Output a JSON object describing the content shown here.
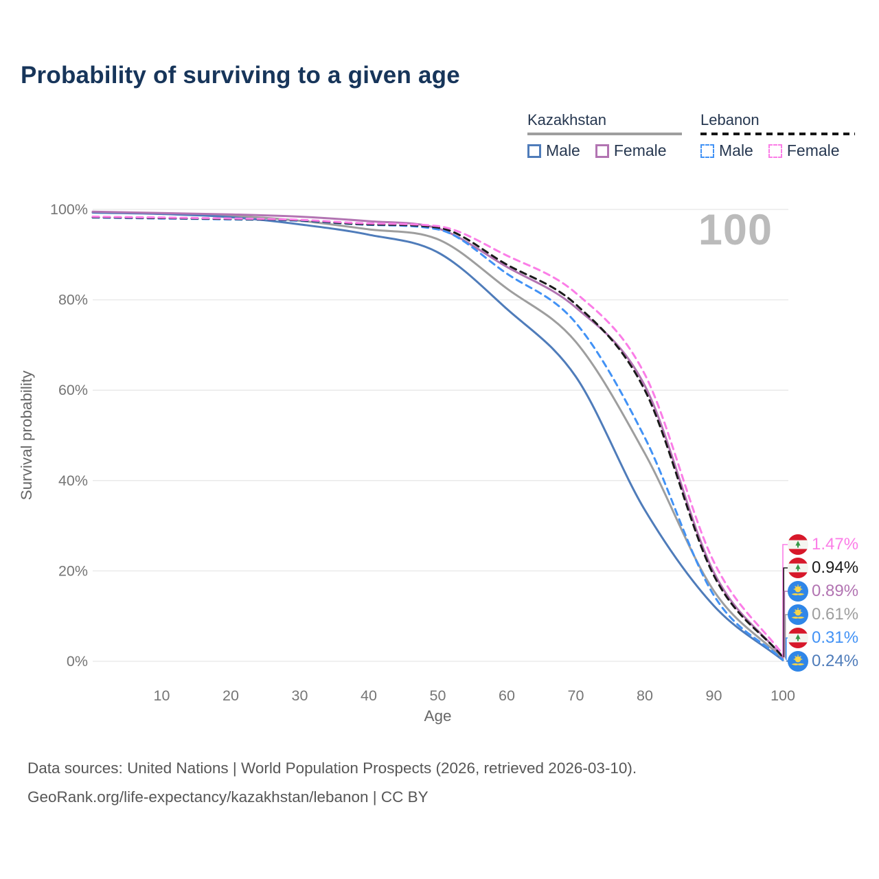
{
  "header": {
    "title": "Probability of surviving to a given age"
  },
  "watermark": {
    "age_indicator": "100"
  },
  "legend": {
    "groups": [
      {
        "country": "Kazakhstan",
        "line_style": "solid",
        "underline_color": "#9e9e9e",
        "items": [
          {
            "label": "Male",
            "color": "#4f7cba"
          },
          {
            "label": "Female",
            "color": "#b274b2"
          }
        ]
      },
      {
        "country": "Lebanon",
        "line_style": "dashed",
        "underline_color": "#151515",
        "items": [
          {
            "label": "Male",
            "color": "#4292f5"
          },
          {
            "label": "Female",
            "color": "#fb7de7"
          }
        ]
      }
    ]
  },
  "chart_data": {
    "type": "line",
    "title": "Probability of surviving to a given age",
    "xlabel": "Age",
    "ylabel": "Survival probability",
    "xlim": [
      0,
      100
    ],
    "ylim": [
      0,
      100
    ],
    "grid": "horizontal",
    "legend_position": "top-right",
    "x_ticks": [
      {
        "v": 10,
        "label": "10"
      },
      {
        "v": 20,
        "label": "20"
      },
      {
        "v": 30,
        "label": "30"
      },
      {
        "v": 40,
        "label": "40"
      },
      {
        "v": 50,
        "label": "50"
      },
      {
        "v": 60,
        "label": "60"
      },
      {
        "v": 70,
        "label": "70"
      },
      {
        "v": 80,
        "label": "80"
      },
      {
        "v": 90,
        "label": "90"
      },
      {
        "v": 100,
        "label": "100"
      }
    ],
    "y_ticks": [
      {
        "v": 0,
        "label": "0%"
      },
      {
        "v": 20,
        "label": "20%"
      },
      {
        "v": 40,
        "label": "40%"
      },
      {
        "v": 60,
        "label": "60%"
      },
      {
        "v": 80,
        "label": "80%"
      },
      {
        "v": 100,
        "label": "100%"
      }
    ],
    "x": [
      0,
      10,
      20,
      30,
      40,
      50,
      60,
      70,
      80,
      90,
      100
    ],
    "series": [
      {
        "name": "Kazakhstan (both sexes)",
        "country": "Kazakhstan",
        "sex": "Both",
        "color": "#9e9e9e",
        "dash": false,
        "end_label": "0.61%",
        "values": [
          99.4,
          99.1,
          98.6,
          97.5,
          95.6,
          93.4,
          82.5,
          70.7,
          46.0,
          15.6,
          0.61
        ]
      },
      {
        "name": "Kazakhstan Male",
        "country": "Kazakhstan",
        "sex": "Male",
        "color": "#4f7cba",
        "dash": false,
        "end_label": "0.24%",
        "values": [
          99.3,
          99.0,
          98.3,
          96.7,
          94.4,
          90.5,
          78.0,
          63.0,
          33.5,
          12.3,
          0.24
        ]
      },
      {
        "name": "Kazakhstan Female",
        "country": "Kazakhstan",
        "sex": "Female",
        "color": "#b274b2",
        "dash": false,
        "end_label": "0.89%",
        "values": [
          99.5,
          99.2,
          98.9,
          98.4,
          97.4,
          95.8,
          87.3,
          78.3,
          61.0,
          19.7,
          0.89
        ]
      },
      {
        "name": "Lebanon Male",
        "country": "Lebanon",
        "sex": "Male",
        "color": "#4292f5",
        "dash": true,
        "end_label": "0.31%",
        "values": [
          98.2,
          98.0,
          97.8,
          97.5,
          96.6,
          95.6,
          85.8,
          74.9,
          49.5,
          14.6,
          0.31
        ]
      },
      {
        "name": "Lebanon (both sexes)",
        "country": "Lebanon",
        "sex": "Both",
        "color": "#1a1a1a",
        "dash": true,
        "end_label": "0.94%",
        "values": [
          98.3,
          98.1,
          97.9,
          97.6,
          96.7,
          96.0,
          87.8,
          79.0,
          60.0,
          19.0,
          0.94
        ]
      },
      {
        "name": "Lebanon Female",
        "country": "Lebanon",
        "sex": "Female",
        "color": "#fb7de7",
        "dash": true,
        "end_label": "1.47%",
        "values": [
          98.4,
          98.2,
          98.0,
          97.7,
          96.9,
          96.3,
          89.8,
          81.5,
          63.5,
          22.0,
          1.47
        ]
      }
    ],
    "flag_colors": {
      "lebanon_red": "#d7182a",
      "lebanon_white": "#f4f5f0",
      "lebanon_green": "#359846",
      "kazakhstan_blue": "#2f86e8",
      "kazakhstan_yellow": "#f6d44c"
    }
  },
  "footer": {
    "line1": "Data sources: United Nations | World Population Prospects (2026, retrieved 2026-03-10).",
    "line2": "GeoRank.org/life-expectancy/kazakhstan/lebanon | CC BY"
  }
}
